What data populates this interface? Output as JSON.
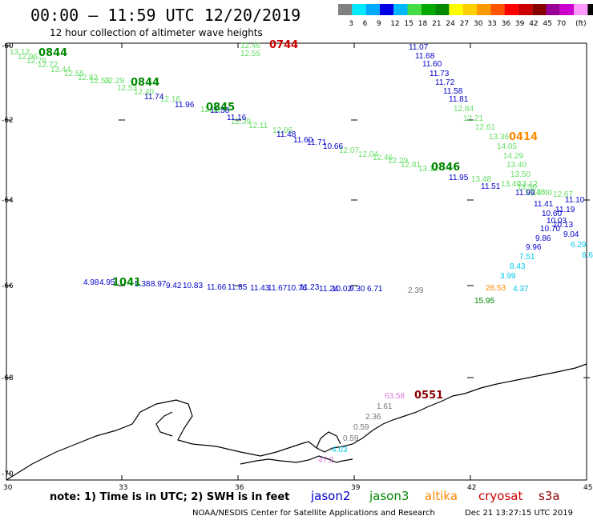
{
  "header": {
    "title": "00:00 — 11:59 UTC 12/20/2019",
    "subtitle": "12 hour collection of altimeter wave heights"
  },
  "color_scale": {
    "colors": [
      "#808080",
      "#00eaff",
      "#00aaff",
      "#0000e6",
      "#00b8ff",
      "#44dd44",
      "#00aa00",
      "#008800",
      "#ffff00",
      "#ffd000",
      "#ff9900",
      "#ff5500",
      "#ff0000",
      "#cc0000",
      "#880000",
      "#990099",
      "#cc00cc",
      "#ff99ff",
      "#000000"
    ],
    "labels": [
      "3",
      "6",
      "9",
      "12",
      "15",
      "18",
      "21",
      "24",
      "27",
      "30",
      "33",
      "36",
      "39",
      "42",
      "45",
      "70"
    ],
    "unit": "(ft)"
  },
  "axes": {
    "lon_ticks": [
      "30",
      "33",
      "36",
      "39",
      "42",
      "45"
    ],
    "lat_ticks": [
      "-60",
      "-62",
      "-64",
      "-66",
      "-68",
      "-70"
    ]
  },
  "satellite_colors": {
    "jason2": "#0000c8",
    "jason3": "#008800",
    "jason3_light": "#66dd66",
    "altika": "#ff8800",
    "cryosat": "#cc0000",
    "s3a": "#880000",
    "other_cyan": "#00c8e8",
    "gray": "#777777",
    "pink": "#dd77dd"
  },
  "tracks": {
    "jason3_a_values": [
      "13.12",
      "12.96",
      "12.76",
      "12.72",
      "13.44",
      "12.55",
      "12.82",
      "12.53",
      "12.29",
      "12.53",
      "12.40",
      "12.16",
      "12.30",
      "12.39",
      "12.11",
      "12.06",
      "12.07",
      "12.04",
      "12.46",
      "12.29",
      "12.81",
      "13.12",
      "13.48",
      "13.40",
      "13.50",
      "13.40",
      "12.67"
    ],
    "jason3_b_values": [
      "12.46",
      "12.55",
      "12.84",
      "12.21",
      "12.61",
      "13.36",
      "14.05",
      "14.29",
      "13.40",
      "13.50",
      "13.12",
      "12.48"
    ],
    "jason2_a_values": [
      "11.74",
      "11.96",
      "11.58",
      "11.16",
      "11.48",
      "11.60",
      "11.71",
      "10.66",
      "11.95",
      "11.51",
      "11.99"
    ],
    "jason2_b_values": [
      "11.07",
      "11.68",
      "11.60",
      "11.73",
      "11.72",
      "11.58",
      "11.81"
    ],
    "jason2_c_values": [
      "11.41",
      "11.19",
      "11.10",
      "10.60",
      "10.03",
      "10.13",
      "10.70",
      "9.04",
      "9.86",
      "9.96"
    ],
    "cyan_values": [
      "7.51",
      "8.43",
      "3.99",
      "6.29",
      "6.6",
      "4.37"
    ],
    "lat66_values": [
      "4.98",
      "4.95",
      "5.38",
      "8.97",
      "9.42",
      "10.83",
      "11.66",
      "11.85",
      "11.43",
      "11.67",
      "10.76",
      "11.23",
      "11.24",
      "10.02",
      "9.30",
      "6.71"
    ],
    "lat66_gray": "2.39",
    "altika_value": "28.53",
    "jason3_green_value": "15.95",
    "coast_values": {
      "pink_top": "63.58",
      "gray": [
        "1.61",
        "2.36",
        "0.59",
        "0.59"
      ],
      "cyan": "4.03",
      "pink_bottom": "47.2"
    }
  },
  "time_labels": {
    "t0844a": "0844",
    "t0844b": "0844",
    "t0845": "0845",
    "t0846": "0846",
    "t0744": "0744",
    "t0414": "0414",
    "t1041": "1041",
    "t0551": "0551"
  },
  "footer": {
    "note": "note: 1) Time is in UTC; 2) SWH is in feet",
    "satellites": [
      "jason2",
      "jason3",
      "altika",
      "cryosat",
      "s3a"
    ],
    "credit": "NOAA/NESDIS Center for Satellite Applications and Research",
    "timestamp": "Dec 21 13:27:15 UTC 2019"
  }
}
